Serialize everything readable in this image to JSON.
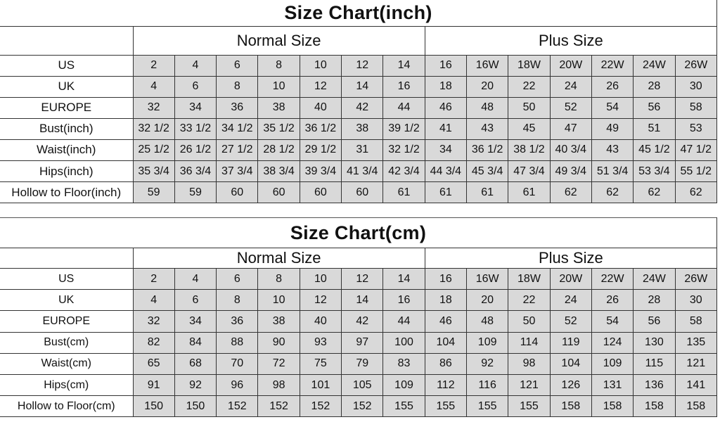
{
  "charts": [
    {
      "title": "Size Chart(inch)",
      "groups": [
        "Normal Size",
        "Plus Size"
      ],
      "rows": [
        {
          "label": "US",
          "values": [
            "2",
            "4",
            "6",
            "8",
            "10",
            "12",
            "14",
            "16",
            "16W",
            "18W",
            "20W",
            "22W",
            "24W",
            "26W"
          ]
        },
        {
          "label": "UK",
          "values": [
            "4",
            "6",
            "8",
            "10",
            "12",
            "14",
            "16",
            "18",
            "20",
            "22",
            "24",
            "26",
            "28",
            "30"
          ]
        },
        {
          "label": "EUROPE",
          "values": [
            "32",
            "34",
            "36",
            "38",
            "40",
            "42",
            "44",
            "46",
            "48",
            "50",
            "52",
            "54",
            "56",
            "58"
          ]
        },
        {
          "label": "Bust(inch)",
          "values": [
            "32 1/2",
            "33 1/2",
            "34 1/2",
            "35 1/2",
            "36 1/2",
            "38",
            "39 1/2",
            "41",
            "43",
            "45",
            "47",
            "49",
            "51",
            "53"
          ]
        },
        {
          "label": "Waist(inch)",
          "values": [
            "25 1/2",
            "26 1/2",
            "27 1/2",
            "28 1/2",
            "29 1/2",
            "31",
            "32 1/2",
            "34",
            "36 1/2",
            "38 1/2",
            "40 3/4",
            "43",
            "45 1/2",
            "47 1/2"
          ]
        },
        {
          "label": "Hips(inch)",
          "values": [
            "35 3/4",
            "36 3/4",
            "37 3/4",
            "38 3/4",
            "39 3/4",
            "41 3/4",
            "42 3/4",
            "44 3/4",
            "45 3/4",
            "47 3/4",
            "49 3/4",
            "51 3/4",
            "53 3/4",
            "55 1/2"
          ]
        },
        {
          "label": "Hollow to Floor(inch)",
          "values": [
            "59",
            "59",
            "60",
            "60",
            "60",
            "60",
            "61",
            "61",
            "61",
            "61",
            "62",
            "62",
            "62",
            "62"
          ]
        }
      ]
    },
    {
      "title": "Size Chart(cm)",
      "groups": [
        "Normal Size",
        "Plus Size"
      ],
      "rows": [
        {
          "label": "US",
          "values": [
            "2",
            "4",
            "6",
            "8",
            "10",
            "12",
            "14",
            "16",
            "16W",
            "18W",
            "20W",
            "22W",
            "24W",
            "26W"
          ]
        },
        {
          "label": "UK",
          "values": [
            "4",
            "6",
            "8",
            "10",
            "12",
            "14",
            "16",
            "18",
            "20",
            "22",
            "24",
            "26",
            "28",
            "30"
          ]
        },
        {
          "label": "EUROPE",
          "values": [
            "32",
            "34",
            "36",
            "38",
            "40",
            "42",
            "44",
            "46",
            "48",
            "50",
            "52",
            "54",
            "56",
            "58"
          ]
        },
        {
          "label": "Bust(cm)",
          "values": [
            "82",
            "84",
            "88",
            "90",
            "93",
            "97",
            "100",
            "104",
            "109",
            "114",
            "119",
            "124",
            "130",
            "135"
          ]
        },
        {
          "label": "Waist(cm)",
          "values": [
            "65",
            "68",
            "70",
            "72",
            "75",
            "79",
            "83",
            "86",
            "92",
            "98",
            "104",
            "109",
            "115",
            "121"
          ]
        },
        {
          "label": "Hips(cm)",
          "values": [
            "91",
            "92",
            "96",
            "98",
            "101",
            "105",
            "109",
            "112",
            "116",
            "121",
            "126",
            "131",
            "136",
            "141"
          ]
        },
        {
          "label": "Hollow to Floor(cm)",
          "values": [
            "150",
            "150",
            "152",
            "152",
            "152",
            "152",
            "155",
            "155",
            "155",
            "155",
            "158",
            "158",
            "158",
            "158"
          ]
        }
      ]
    }
  ],
  "colors": {
    "value_cell_bg": "#d9d9d9",
    "border": "#333333"
  }
}
